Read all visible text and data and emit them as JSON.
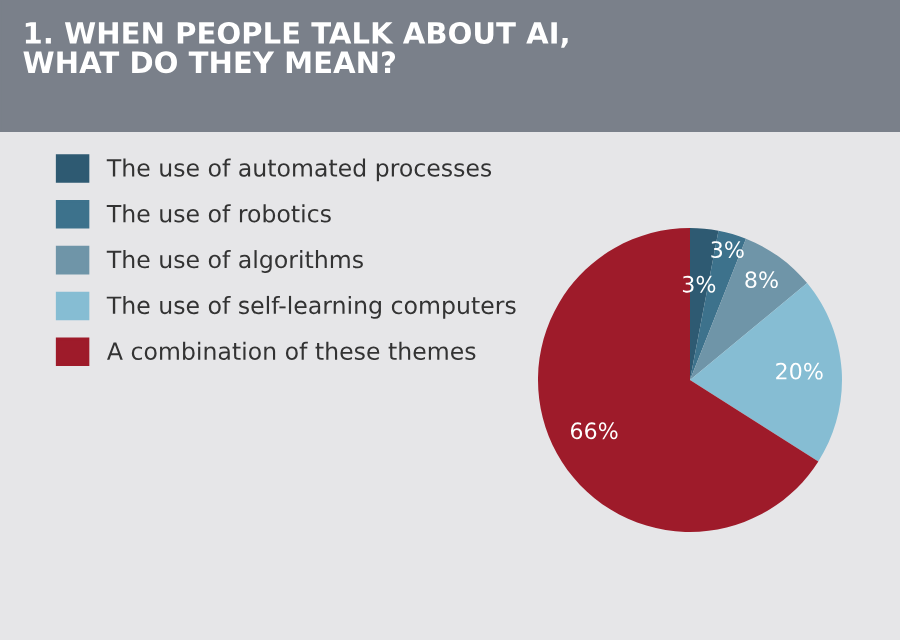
{
  "chart_data": {
    "type": "pie",
    "title": "1. WHEN PEOPLE TALK ABOUT AI,\nWHAT DO THEY MEAN?",
    "categories": [
      "The use of automated processes",
      "The use of robotics",
      "The use of algorithms",
      "The use of self-learning computers",
      "A combination of these themes"
    ],
    "values": [
      3,
      3,
      8,
      20,
      66
    ],
    "value_labels": [
      "3%",
      "3%",
      "8%",
      "20%",
      "66%"
    ],
    "colors": [
      "#2e5a72",
      "#3d728c",
      "#6f95a8",
      "#86bdd3",
      "#9e1b2a"
    ],
    "legend": "left"
  }
}
